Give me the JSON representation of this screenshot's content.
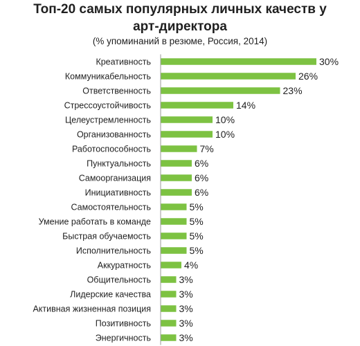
{
  "chart_data": {
    "type": "bar",
    "orientation": "horizontal",
    "title_line1": "Топ-20 самых популярных личных качеств у",
    "title_line2": "арт-директора",
    "subtitle": "(% упоминаний в резюме, Россия, 2014)",
    "value_suffix": "%",
    "bar_color": "#7dc242",
    "axis_color": "#9a9a9a",
    "grid": false,
    "legend": "none",
    "xlim": [
      0,
      30
    ],
    "categories": [
      "Креативность",
      "Коммуникабельность",
      "Ответственность",
      "Стрессоустойчивость",
      "Целеустремленность",
      "Организованность",
      "Работоспособность",
      "Пунктуальность",
      "Самоорганизация",
      "Инициативность",
      "Самостоятельность",
      "Умение работать в команде",
      "Быстрая обучаемость",
      "Исполнительность",
      "Аккуратность",
      "Общительность",
      "Лидерские качества",
      "Активная жизненная позиция",
      "Позитивность",
      "Энергичность"
    ],
    "values": [
      30,
      26,
      23,
      14,
      10,
      10,
      7,
      6,
      6,
      6,
      5,
      5,
      5,
      5,
      4,
      3,
      3,
      3,
      3,
      3
    ]
  }
}
